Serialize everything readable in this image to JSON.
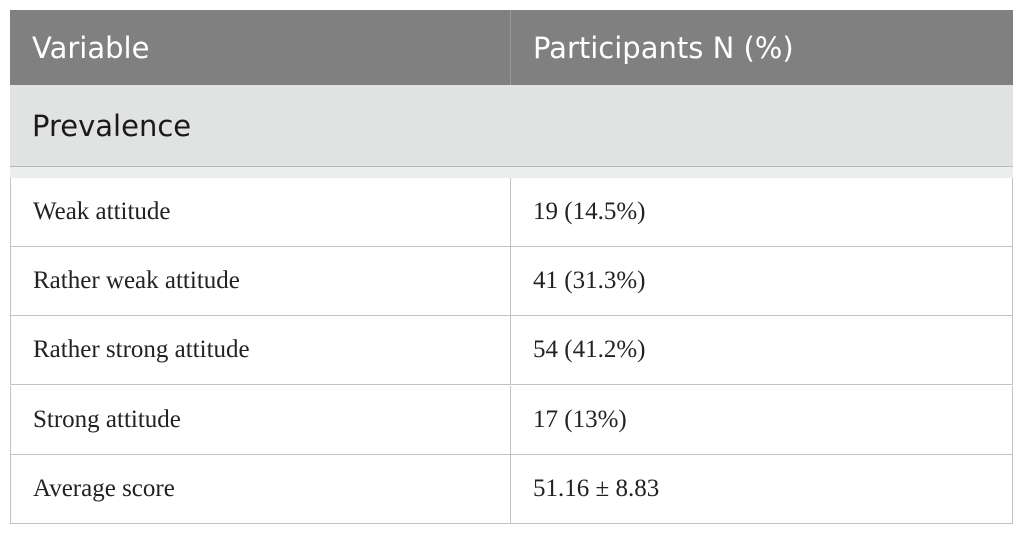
{
  "table": {
    "header": [
      "Variable",
      "Participants N (%)"
    ],
    "section": "Prevalence",
    "rows": [
      [
        "Weak attitude",
        "19 (14.5%)"
      ],
      [
        "Rather weak attitude",
        "41 (31.3%)"
      ],
      [
        "Rather strong attitude",
        "54 (41.2%)"
      ],
      [
        "Strong attitude",
        "17 (13%)"
      ],
      [
        "Average score",
        "51.16 ± 8.83"
      ]
    ]
  }
}
